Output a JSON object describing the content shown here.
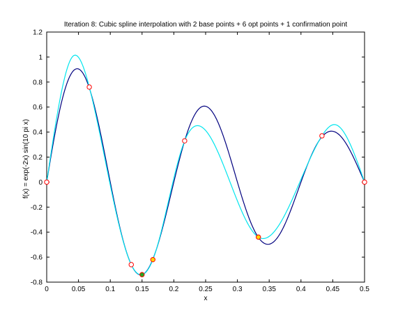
{
  "chart_data": {
    "type": "line",
    "title": "Iteration 8: Cubic spline interpolation with 2 base points + 6 opt points + 1 confirmation point",
    "xlabel": "x",
    "ylabel": "f(x) = exp(-2x) sin(10 pi x)",
    "xlim": [
      0,
      0.5
    ],
    "ylim": [
      -0.8,
      1.2
    ],
    "xticks": [
      "0",
      "0.05",
      "0.1",
      "0.15",
      "0.2",
      "0.25",
      "0.3",
      "0.35",
      "0.4",
      "0.45",
      "0.5"
    ],
    "yticks": [
      "-0.8",
      "-0.6",
      "-0.4",
      "-0.2",
      "0",
      "0.2",
      "0.4",
      "0.6",
      "0.8",
      "1",
      "1.2"
    ],
    "grid": false,
    "series": [
      {
        "role": "true-function",
        "color": "#00007f",
        "function": "exp(-2x) sin(10 pi x)"
      },
      {
        "role": "spline-interpolant",
        "color": "#00e5ee",
        "x": [
          0,
          0.042,
          0.067,
          0.133,
          0.15,
          0.167,
          0.217,
          0.235,
          0.333,
          0.433,
          0.453,
          0.5
        ],
        "y": [
          0,
          1.01,
          0.76,
          -0.66,
          -0.74,
          -0.62,
          0.33,
          0.45,
          -0.44,
          0.37,
          0.46,
          0
        ]
      }
    ],
    "points": [
      {
        "kind": "base",
        "x": 0,
        "y": 0,
        "color": "#ff0000",
        "fill": "#ffffff"
      },
      {
        "kind": "opt",
        "x": 0.067,
        "y": 0.76,
        "color": "#ff0000",
        "fill": "#ffffff"
      },
      {
        "kind": "opt",
        "x": 0.133,
        "y": -0.66,
        "color": "#ff0000",
        "fill": "#ffffff"
      },
      {
        "kind": "confirmation",
        "x": 0.15,
        "y": -0.74,
        "color": "#ff0000",
        "fill": "#22aa22"
      },
      {
        "kind": "opt",
        "x": 0.167,
        "y": -0.62,
        "color": "#ff0000",
        "fill": "#ffd700"
      },
      {
        "kind": "opt",
        "x": 0.217,
        "y": 0.33,
        "color": "#ff0000",
        "fill": "#ffffff"
      },
      {
        "kind": "opt",
        "x": 0.333,
        "y": -0.44,
        "color": "#ff0000",
        "fill": "#ffd700"
      },
      {
        "kind": "opt",
        "x": 0.433,
        "y": 0.37,
        "color": "#ff0000",
        "fill": "#ffffff"
      },
      {
        "kind": "base",
        "x": 0.5,
        "y": 0,
        "color": "#ff0000",
        "fill": "#ffffff"
      }
    ]
  }
}
